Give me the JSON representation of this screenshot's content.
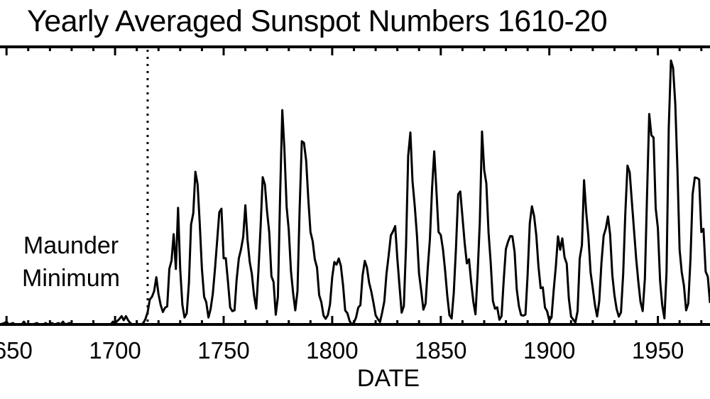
{
  "chart_data": {
    "type": "line",
    "title": "Yearly Averaged Sunspot Numbers 1610-20",
    "xlabel": "DATE",
    "ylabel": "",
    "xlim": [
      1647,
      1974
    ],
    "ylim": [
      0,
      200
    ],
    "xticks": [
      1650,
      1700,
      1750,
      1800,
      1850,
      1900,
      1950
    ],
    "xtick_labels": [
      "1650",
      "1700",
      "1750",
      "1800",
      "1850",
      "1900",
      "1950"
    ],
    "grid": false,
    "annotations": [
      {
        "text_line1": "Maunder",
        "text_line2": "Minimum",
        "marker_year": 1715,
        "marker_style": "dotted vertical line"
      }
    ],
    "series": [
      {
        "color": "#000000",
        "points": [
          [
            1647,
            0
          ],
          [
            1649,
            1
          ],
          [
            1650,
            2
          ],
          [
            1651,
            0
          ],
          [
            1653,
            1
          ],
          [
            1654,
            0
          ],
          [
            1657,
            0
          ],
          [
            1658,
            2
          ],
          [
            1659,
            0
          ],
          [
            1662,
            0
          ],
          [
            1664,
            1
          ],
          [
            1665,
            0
          ],
          [
            1667,
            0
          ],
          [
            1668,
            1
          ],
          [
            1669,
            0
          ],
          [
            1671,
            1
          ],
          [
            1672,
            0
          ],
          [
            1674,
            1
          ],
          [
            1675,
            0
          ],
          [
            1676,
            2
          ],
          [
            1677,
            0
          ],
          [
            1679,
            1
          ],
          [
            1680,
            0
          ],
          [
            1698,
            0
          ],
          [
            1699,
            2
          ],
          [
            1700,
            1
          ],
          [
            1702,
            4
          ],
          [
            1703,
            6
          ],
          [
            1704,
            3
          ],
          [
            1705,
            6
          ],
          [
            1706,
            3
          ],
          [
            1707,
            1
          ],
          [
            1708,
            0
          ],
          [
            1712,
            0
          ],
          [
            1713,
            1
          ],
          [
            1714,
            4
          ],
          [
            1715,
            9
          ],
          [
            1716,
            18
          ],
          [
            1717,
            20
          ],
          [
            1718,
            24
          ],
          [
            1719,
            34
          ],
          [
            1720,
            22
          ],
          [
            1721,
            14
          ],
          [
            1722,
            9
          ],
          [
            1723,
            12
          ],
          [
            1724,
            13
          ],
          [
            1725,
            40
          ],
          [
            1726,
            46
          ],
          [
            1727,
            65
          ],
          [
            1728,
            40
          ],
          [
            1729,
            84
          ],
          [
            1730,
            40
          ],
          [
            1731,
            14
          ],
          [
            1732,
            5
          ],
          [
            1733,
            8
          ],
          [
            1734,
            30
          ],
          [
            1735,
            72
          ],
          [
            1736,
            80
          ],
          [
            1737,
            110
          ],
          [
            1738,
            101
          ],
          [
            1739,
            73
          ],
          [
            1740,
            40
          ],
          [
            1741,
            20
          ],
          [
            1742,
            16
          ],
          [
            1743,
            5
          ],
          [
            1744,
            11
          ],
          [
            1745,
            22
          ],
          [
            1746,
            40
          ],
          [
            1747,
            60
          ],
          [
            1748,
            80.9
          ],
          [
            1749,
            83.4
          ],
          [
            1750,
            47.7
          ],
          [
            1751,
            47.8
          ],
          [
            1752,
            30.7
          ],
          [
            1753,
            12.2
          ],
          [
            1754,
            9.6
          ],
          [
            1755,
            10.2
          ],
          [
            1756,
            32.4
          ],
          [
            1757,
            47.6
          ],
          [
            1758,
            54.0
          ],
          [
            1759,
            62.9
          ],
          [
            1760,
            85.9
          ],
          [
            1761,
            61.2
          ],
          [
            1762,
            45.1
          ],
          [
            1763,
            36.4
          ],
          [
            1764,
            20.9
          ],
          [
            1765,
            11.4
          ],
          [
            1766,
            37.8
          ],
          [
            1767,
            69.8
          ],
          [
            1768,
            106.1
          ],
          [
            1769,
            100.8
          ],
          [
            1770,
            81.6
          ],
          [
            1771,
            66.5
          ],
          [
            1772,
            34.8
          ],
          [
            1773,
            30.6
          ],
          [
            1774,
            7.0
          ],
          [
            1775,
            19.8
          ],
          [
            1776,
            92.5
          ],
          [
            1777,
            154.4
          ],
          [
            1778,
            125.9
          ],
          [
            1779,
            84.8
          ],
          [
            1780,
            68.1
          ],
          [
            1781,
            38.5
          ],
          [
            1782,
            22.8
          ],
          [
            1783,
            10.2
          ],
          [
            1784,
            24.1
          ],
          [
            1785,
            82.9
          ],
          [
            1786,
            132.0
          ],
          [
            1787,
            130.9
          ],
          [
            1788,
            118.1
          ],
          [
            1789,
            89.9
          ],
          [
            1790,
            66.6
          ],
          [
            1791,
            60.0
          ],
          [
            1792,
            46.9
          ],
          [
            1793,
            41.0
          ],
          [
            1794,
            21.3
          ],
          [
            1795,
            16.0
          ],
          [
            1796,
            6.4
          ],
          [
            1797,
            4.1
          ],
          [
            1798,
            6.8
          ],
          [
            1799,
            14.5
          ],
          [
            1800,
            34.0
          ],
          [
            1801,
            45.0
          ],
          [
            1802,
            43.1
          ],
          [
            1803,
            47.5
          ],
          [
            1804,
            42.2
          ],
          [
            1805,
            28.1
          ],
          [
            1806,
            10.1
          ],
          [
            1807,
            8.1
          ],
          [
            1808,
            2.5
          ],
          [
            1809,
            0.0
          ],
          [
            1810,
            1.4
          ],
          [
            1811,
            5.0
          ],
          [
            1812,
            12.2
          ],
          [
            1813,
            13.9
          ],
          [
            1814,
            35.4
          ],
          [
            1815,
            45.8
          ],
          [
            1816,
            41.1
          ],
          [
            1817,
            30.1
          ],
          [
            1818,
            23.9
          ],
          [
            1819,
            15.6
          ],
          [
            1820,
            6.6
          ],
          [
            1821,
            4.0
          ],
          [
            1822,
            1.8
          ],
          [
            1823,
            8.5
          ],
          [
            1824,
            16.6
          ],
          [
            1825,
            36.3
          ],
          [
            1826,
            49.6
          ],
          [
            1827,
            64.2
          ],
          [
            1828,
            67.0
          ],
          [
            1829,
            70.9
          ],
          [
            1830,
            47.8
          ],
          [
            1831,
            27.5
          ],
          [
            1832,
            8.5
          ],
          [
            1833,
            13.2
          ],
          [
            1834,
            56.9
          ],
          [
            1835,
            121.5
          ],
          [
            1836,
            138.3
          ],
          [
            1837,
            103.2
          ],
          [
            1838,
            85.7
          ],
          [
            1839,
            64.6
          ],
          [
            1840,
            36.7
          ],
          [
            1841,
            24.2
          ],
          [
            1842,
            10.7
          ],
          [
            1843,
            15.0
          ],
          [
            1844,
            40.1
          ],
          [
            1845,
            61.5
          ],
          [
            1846,
            98.5
          ],
          [
            1847,
            124.7
          ],
          [
            1848,
            96.3
          ],
          [
            1849,
            66.6
          ],
          [
            1850,
            64.5
          ],
          [
            1851,
            54.1
          ],
          [
            1852,
            39.0
          ],
          [
            1853,
            20.6
          ],
          [
            1854,
            6.7
          ],
          [
            1855,
            4.3
          ],
          [
            1856,
            22.7
          ],
          [
            1857,
            54.8
          ],
          [
            1858,
            93.8
          ],
          [
            1859,
            95.8
          ],
          [
            1860,
            77.2
          ],
          [
            1861,
            59.1
          ],
          [
            1862,
            44.0
          ],
          [
            1863,
            47.0
          ],
          [
            1864,
            30.5
          ],
          [
            1865,
            16.3
          ],
          [
            1866,
            7.3
          ],
          [
            1867,
            37.6
          ],
          [
            1868,
            74.0
          ],
          [
            1869,
            139.0
          ],
          [
            1870,
            111.2
          ],
          [
            1871,
            101.6
          ],
          [
            1872,
            66.2
          ],
          [
            1873,
            44.7
          ],
          [
            1874,
            17.0
          ],
          [
            1875,
            11.3
          ],
          [
            1876,
            12.4
          ],
          [
            1877,
            3.4
          ],
          [
            1878,
            6.0
          ],
          [
            1879,
            32.3
          ],
          [
            1880,
            54.3
          ],
          [
            1881,
            59.7
          ],
          [
            1882,
            63.7
          ],
          [
            1883,
            63.5
          ],
          [
            1884,
            52.2
          ],
          [
            1885,
            25.4
          ],
          [
            1886,
            13.1
          ],
          [
            1887,
            6.8
          ],
          [
            1888,
            6.3
          ],
          [
            1889,
            7.1
          ],
          [
            1890,
            35.6
          ],
          [
            1891,
            73.0
          ],
          [
            1892,
            85.1
          ],
          [
            1893,
            78.0
          ],
          [
            1894,
            64.0
          ],
          [
            1895,
            41.8
          ],
          [
            1896,
            26.2
          ],
          [
            1897,
            26.7
          ],
          [
            1898,
            12.1
          ],
          [
            1899,
            9.5
          ],
          [
            1900,
            2.7
          ],
          [
            1901,
            5.0
          ],
          [
            1902,
            24.4
          ],
          [
            1903,
            42.0
          ],
          [
            1904,
            63.5
          ],
          [
            1905,
            53.8
          ],
          [
            1906,
            62.0
          ],
          [
            1907,
            48.5
          ],
          [
            1908,
            43.9
          ],
          [
            1909,
            18.6
          ],
          [
            1910,
            5.7
          ],
          [
            1911,
            3.6
          ],
          [
            1912,
            1.4
          ],
          [
            1913,
            9.6
          ],
          [
            1914,
            47.4
          ],
          [
            1915,
            57.1
          ],
          [
            1916,
            103.9
          ],
          [
            1917,
            80.6
          ],
          [
            1918,
            63.6
          ],
          [
            1919,
            37.6
          ],
          [
            1920,
            26.1
          ],
          [
            1921,
            14.2
          ],
          [
            1922,
            5.8
          ],
          [
            1923,
            16.7
          ],
          [
            1924,
            44.3
          ],
          [
            1925,
            63.9
          ],
          [
            1926,
            69.0
          ],
          [
            1927,
            77.8
          ],
          [
            1928,
            64.9
          ],
          [
            1929,
            35.7
          ],
          [
            1930,
            21.2
          ],
          [
            1931,
            11.1
          ],
          [
            1932,
            5.7
          ],
          [
            1933,
            8.7
          ],
          [
            1934,
            36.1
          ],
          [
            1935,
            79.7
          ],
          [
            1936,
            114.4
          ],
          [
            1937,
            109.6
          ],
          [
            1938,
            88.8
          ],
          [
            1939,
            67.8
          ],
          [
            1940,
            47.5
          ],
          [
            1941,
            30.6
          ],
          [
            1942,
            16.3
          ],
          [
            1943,
            9.6
          ],
          [
            1944,
            33.2
          ],
          [
            1945,
            92.6
          ],
          [
            1946,
            151.6
          ],
          [
            1947,
            136.3
          ],
          [
            1948,
            134.7
          ],
          [
            1949,
            83.9
          ],
          [
            1950,
            69.4
          ],
          [
            1951,
            31.5
          ],
          [
            1952,
            13.9
          ],
          [
            1953,
            4.4
          ],
          [
            1954,
            38.0
          ],
          [
            1955,
            141.7
          ],
          [
            1956,
            190.2
          ],
          [
            1957,
            184.8
          ],
          [
            1958,
            159.0
          ],
          [
            1959,
            112.3
          ],
          [
            1960,
            53.9
          ],
          [
            1961,
            37.6
          ],
          [
            1962,
            27.9
          ],
          [
            1963,
            10.2
          ],
          [
            1964,
            15.1
          ],
          [
            1965,
            47.0
          ],
          [
            1966,
            93.8
          ],
          [
            1967,
            105.9
          ],
          [
            1968,
            105.5
          ],
          [
            1969,
            104.5
          ],
          [
            1970,
            66.6
          ],
          [
            1971,
            68.9
          ],
          [
            1972,
            38.0
          ],
          [
            1973,
            34.5
          ],
          [
            1974,
            15.5
          ]
        ]
      }
    ]
  }
}
